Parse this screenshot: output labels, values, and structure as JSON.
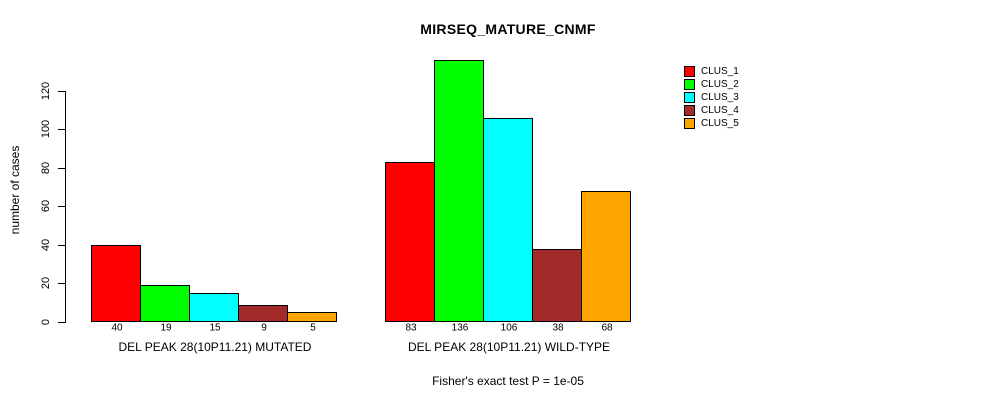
{
  "chart_data": {
    "type": "bar",
    "title": "MIRSEQ_MATURE_CNMF",
    "ylabel": "number of cases",
    "xlabel": "",
    "ylim": [
      0,
      140
    ],
    "yticks": [
      0,
      20,
      40,
      60,
      80,
      100,
      120
    ],
    "grid": false,
    "legend_position": "top-right",
    "background": "#FFFFFF",
    "bar_border_color": "#000000",
    "categories": [
      "DEL PEAK 28(10P11.21) MUTATED",
      "DEL PEAK 28(10P11.21) WILD-TYPE"
    ],
    "series": [
      {
        "name": "CLUS_1",
        "color": "#FF0000",
        "values": [
          40,
          83
        ]
      },
      {
        "name": "CLUS_2",
        "color": "#00FF00",
        "values": [
          19,
          136
        ]
      },
      {
        "name": "CLUS_3",
        "color": "#00FFFF",
        "values": [
          15,
          106
        ]
      },
      {
        "name": "CLUS_4",
        "color": "#A52A2A",
        "values": [
          9,
          38
        ]
      },
      {
        "name": "CLUS_5",
        "color": "#FFA500",
        "values": [
          5,
          68
        ]
      }
    ],
    "bar_value_labels": [
      [
        "40",
        "19",
        "15",
        "9",
        "5"
      ],
      [
        "83",
        "136",
        "106",
        "38",
        "68"
      ]
    ],
    "annotation": "Fisher's exact test P = 1e-05"
  }
}
